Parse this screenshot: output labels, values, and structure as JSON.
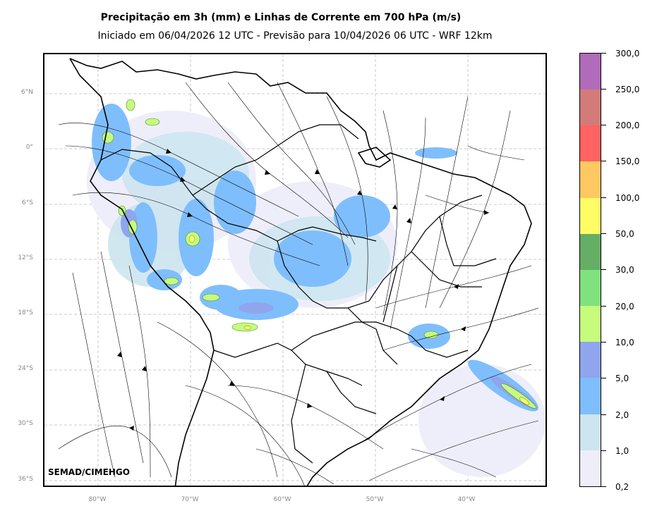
{
  "title": "Precipitação em 3h (mm) e Linhas de Corrente em 700 hPa (m/s)",
  "subtitle": "Iniciado em 06/04/2026 12 UTC - Previsão para 10/04/2026 06 UTC - WRF 12km",
  "credit": "SEMAD/CIMEHGO",
  "lat_ticks": [
    "6°N",
    "0°",
    "6°S",
    "12°S",
    "18°S",
    "24°S",
    "30°S",
    "36°S"
  ],
  "lon_ticks": [
    "80°W",
    "70°W",
    "60°W",
    "50°W",
    "40°W"
  ],
  "colorbar": {
    "labels": [
      "0,2",
      "1,0",
      "2,0",
      "5,0",
      "10,0",
      "20,0",
      "30,0",
      "50,0",
      "100,0",
      "150,0",
      "200,0",
      "250,0",
      "300,0"
    ],
    "colors": [
      "#eeeefb",
      "#cde5ef",
      "#7fbefc",
      "#8fa5ee",
      "#c6fb7c",
      "#80e27f",
      "#65ae65",
      "#fffc66",
      "#ffc862",
      "#ff6362",
      "#d27b79",
      "#b06bba"
    ]
  }
}
